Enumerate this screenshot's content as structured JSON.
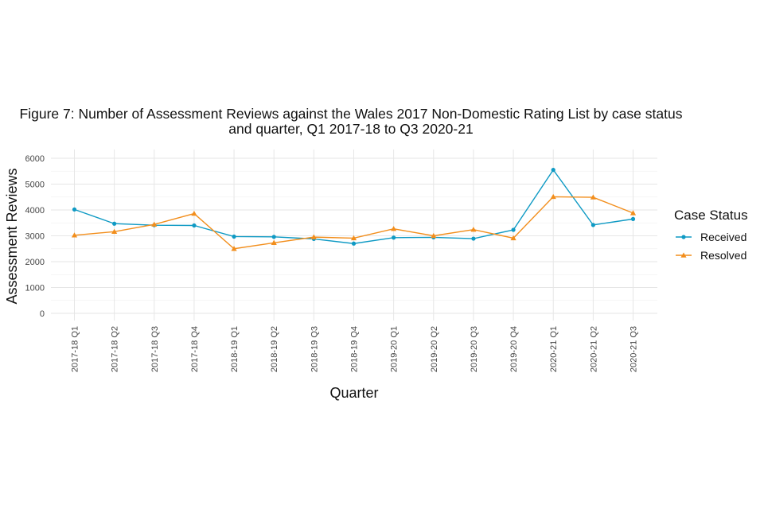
{
  "chart_data": {
    "type": "line",
    "title_line1": "Figure 7: Number of Assessment Reviews against the Wales 2017 Non-Domestic Rating List by case status",
    "title_line2": "and quarter, Q1 2017-18 to Q3 2020-21",
    "xlabel": "Quarter",
    "ylabel": "Assessment Reviews",
    "ylim": [
      0,
      6000
    ],
    "yticks": [
      0,
      1000,
      2000,
      3000,
      4000,
      5000,
      6000
    ],
    "categories": [
      "2017-18 Q1",
      "2017-18 Q2",
      "2017-18 Q3",
      "2017-18 Q4",
      "2018-19 Q1",
      "2018-19 Q2",
      "2018-19 Q3",
      "2018-19 Q4",
      "2019-20 Q1",
      "2019-20 Q2",
      "2019-20 Q3",
      "2019-20 Q4",
      "2020-21 Q1",
      "2020-21 Q2",
      "2020-21 Q3"
    ],
    "legend_title": "Case Status",
    "legend_position": "right",
    "grid": true,
    "series": [
      {
        "name": "Received",
        "color": "#0f9ac4",
        "marker": "circle",
        "values": [
          4020,
          3470,
          3410,
          3400,
          2970,
          2960,
          2880,
          2700,
          2930,
          2940,
          2890,
          3230,
          5550,
          3420,
          3650
        ]
      },
      {
        "name": "Resolved",
        "color": "#f28e1c",
        "marker": "triangle",
        "values": [
          3020,
          3160,
          3440,
          3860,
          2500,
          2730,
          2950,
          2910,
          3270,
          3000,
          3240,
          2910,
          4510,
          4490,
          3880
        ]
      }
    ]
  }
}
